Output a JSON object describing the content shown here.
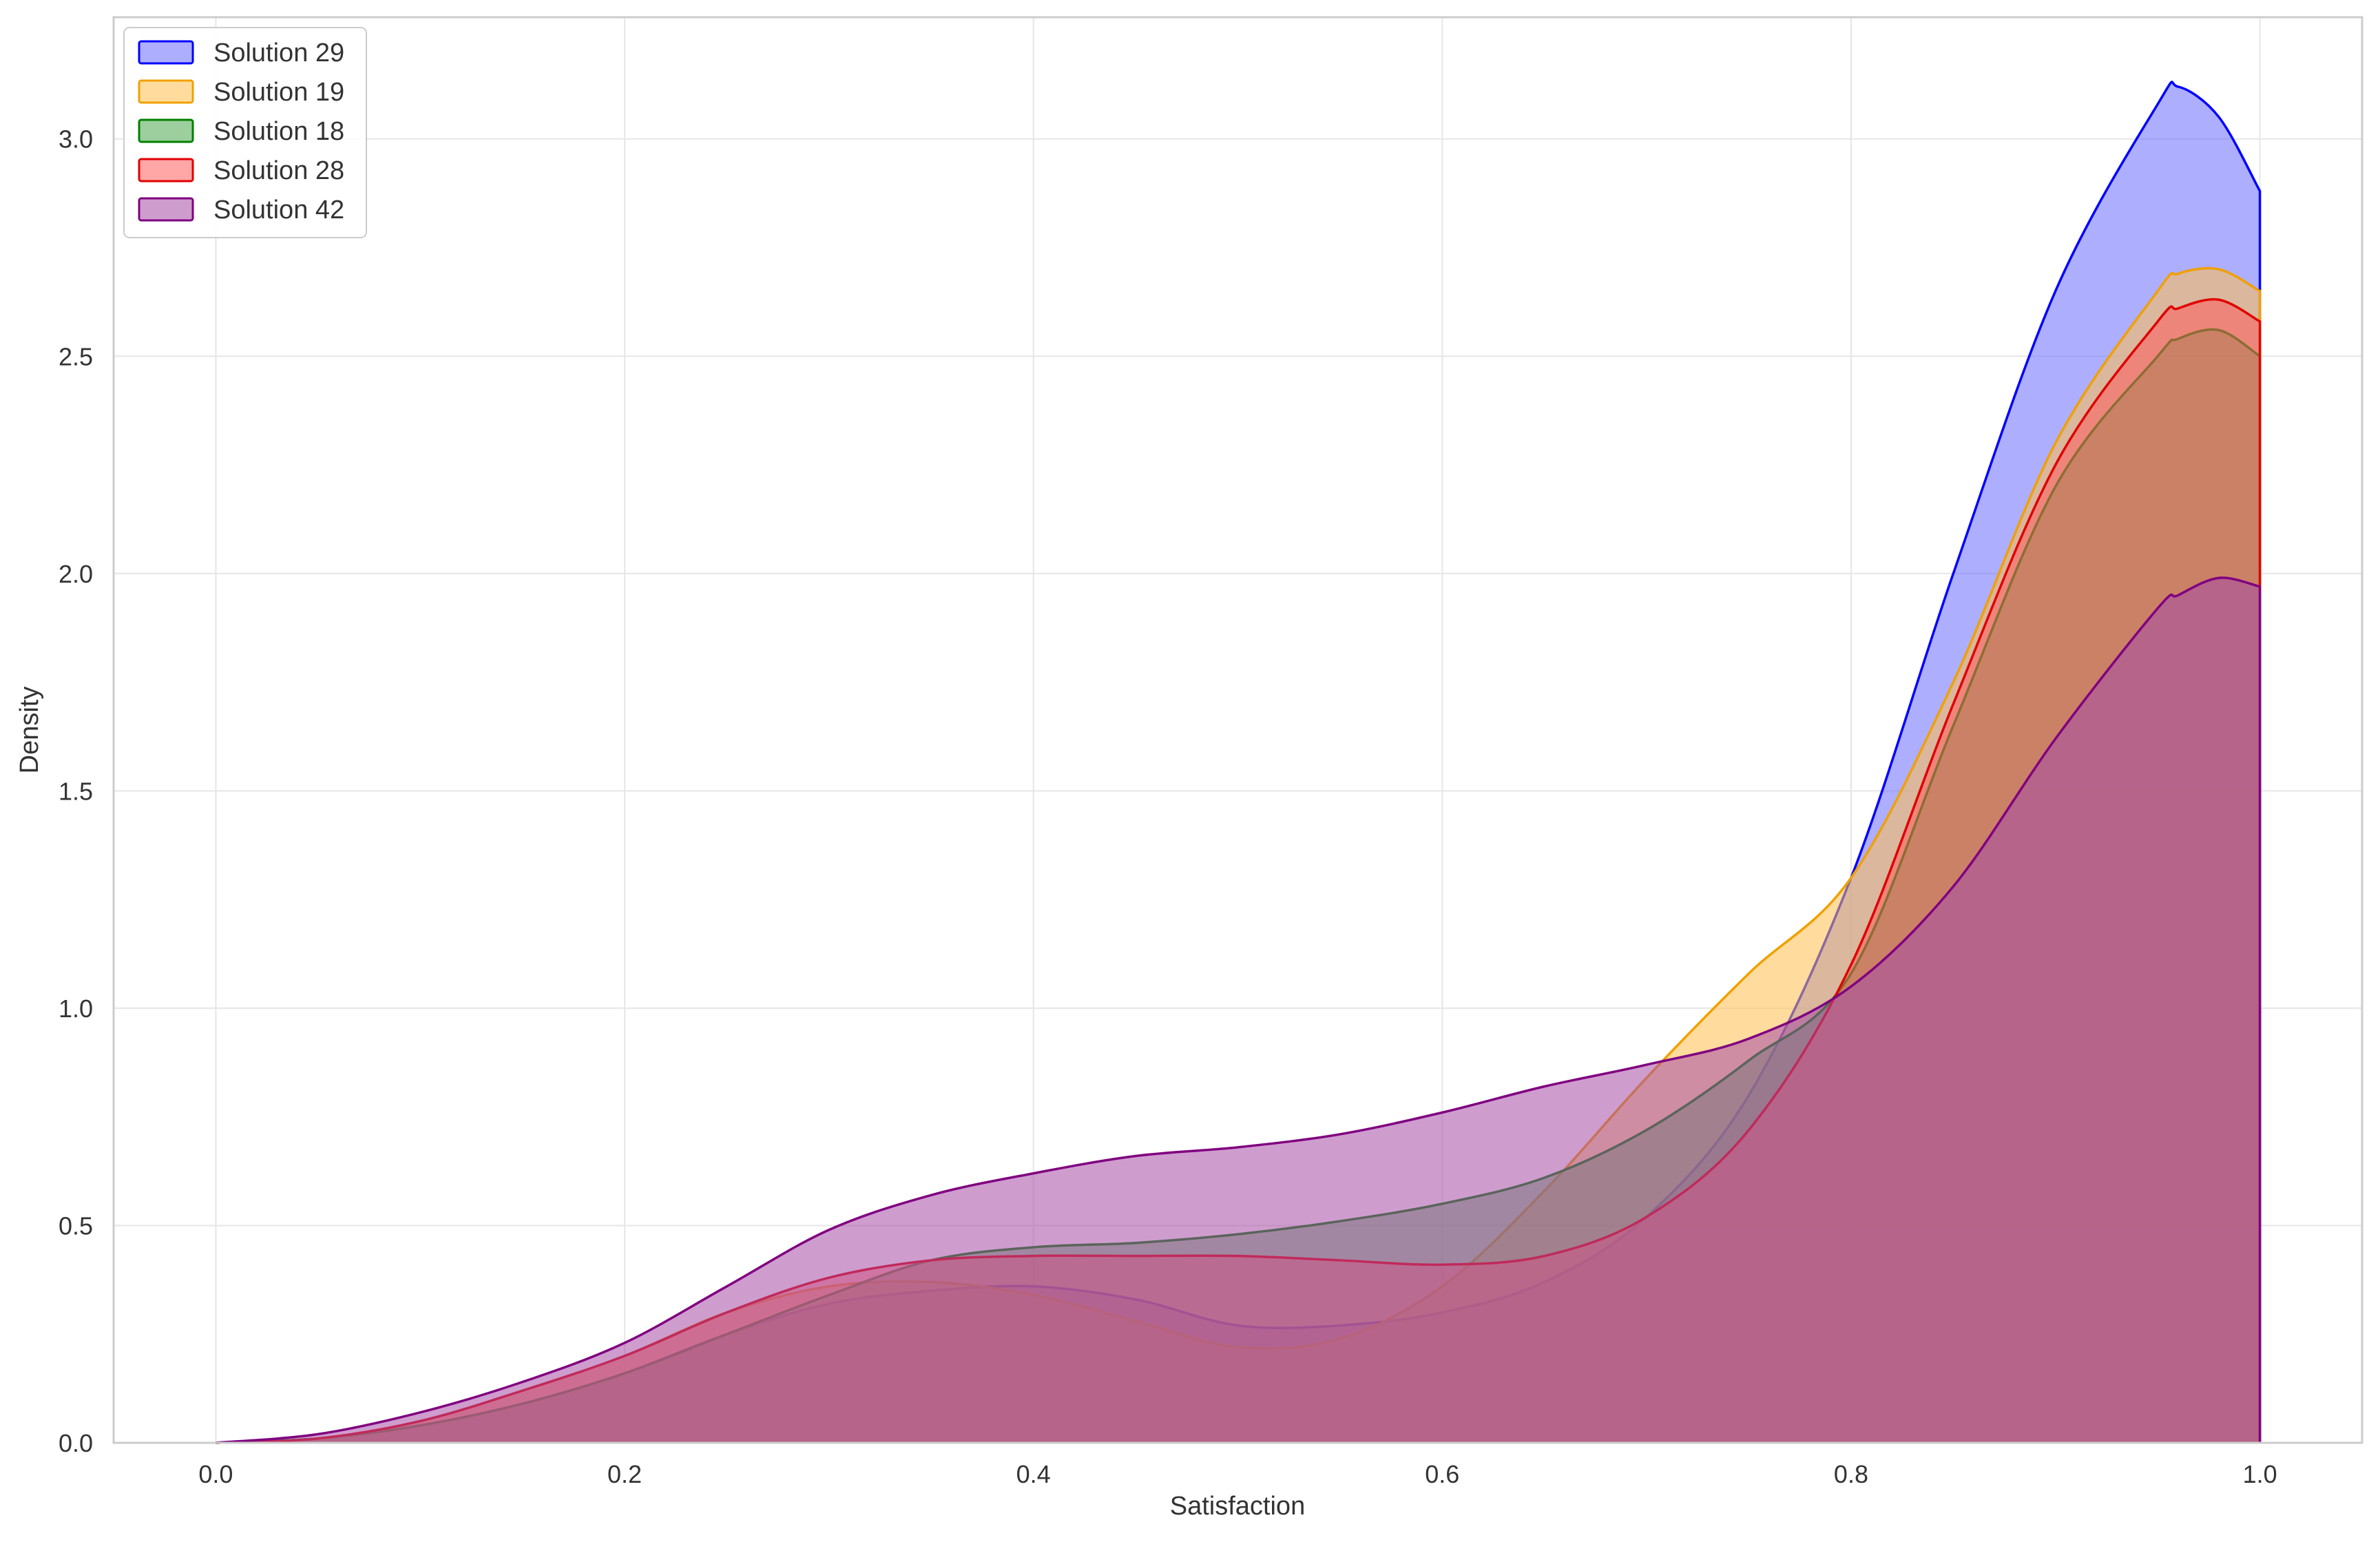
{
  "chart_data": {
    "type": "area",
    "title": "",
    "xlabel": "Satisfaction",
    "ylabel": "Density",
    "xlim": [
      -0.05,
      1.05
    ],
    "ylim": [
      0,
      3.28
    ],
    "xticks": [
      0.0,
      0.2,
      0.4,
      0.6,
      0.8,
      1.0
    ],
    "yticks": [
      0.0,
      0.5,
      1.0,
      1.5,
      2.0,
      2.5,
      3.0
    ],
    "xtick_labels": [
      "0.0",
      "0.2",
      "0.4",
      "0.6",
      "0.8",
      "1.0"
    ],
    "ytick_labels": [
      "0.0",
      "0.5",
      "1.0",
      "1.5",
      "2.0",
      "2.5",
      "3.0"
    ],
    "grid": true,
    "legend_position": "top-left",
    "x": [
      0.0,
      0.05,
      0.1,
      0.15,
      0.2,
      0.25,
      0.3,
      0.35,
      0.4,
      0.45,
      0.5,
      0.55,
      0.6,
      0.65,
      0.7,
      0.75,
      0.8,
      0.85,
      0.9,
      0.95,
      0.96,
      0.98,
      1.0
    ],
    "series": [
      {
        "name": "Solution 29",
        "color": "#0000ff",
        "fill": "#6b6bff",
        "values": [
          0.0,
          0.01,
          0.04,
          0.09,
          0.16,
          0.25,
          0.32,
          0.35,
          0.36,
          0.33,
          0.27,
          0.27,
          0.3,
          0.37,
          0.52,
          0.8,
          1.3,
          2.0,
          2.65,
          3.08,
          3.12,
          3.05,
          2.88
        ]
      },
      {
        "name": "Solution 19",
        "color": "#f0a000",
        "fill": "#ffc04d",
        "values": [
          0.0,
          0.01,
          0.05,
          0.12,
          0.2,
          0.3,
          0.36,
          0.37,
          0.34,
          0.28,
          0.22,
          0.24,
          0.36,
          0.58,
          0.84,
          1.08,
          1.3,
          1.75,
          2.3,
          2.65,
          2.69,
          2.7,
          2.65
        ]
      },
      {
        "name": "Solution 18",
        "color": "#008000",
        "fill": "#4da64d",
        "values": [
          0.0,
          0.01,
          0.04,
          0.09,
          0.16,
          0.25,
          0.34,
          0.42,
          0.45,
          0.46,
          0.48,
          0.51,
          0.55,
          0.61,
          0.72,
          0.88,
          1.08,
          1.65,
          2.2,
          2.5,
          2.54,
          2.56,
          2.5
        ]
      },
      {
        "name": "Solution 28",
        "color": "#e00000",
        "fill": "#ff5c5c",
        "values": [
          0.0,
          0.01,
          0.05,
          0.12,
          0.2,
          0.3,
          0.38,
          0.42,
          0.43,
          0.43,
          0.43,
          0.42,
          0.41,
          0.43,
          0.52,
          0.72,
          1.1,
          1.7,
          2.25,
          2.58,
          2.61,
          2.63,
          2.58
        ]
      },
      {
        "name": "Solution 42",
        "color": "#800080",
        "fill": "#a64da6",
        "values": [
          0.0,
          0.02,
          0.07,
          0.14,
          0.23,
          0.36,
          0.49,
          0.57,
          0.62,
          0.66,
          0.68,
          0.71,
          0.76,
          0.82,
          0.87,
          0.93,
          1.05,
          1.28,
          1.62,
          1.92,
          1.95,
          1.99,
          1.97
        ]
      }
    ]
  }
}
